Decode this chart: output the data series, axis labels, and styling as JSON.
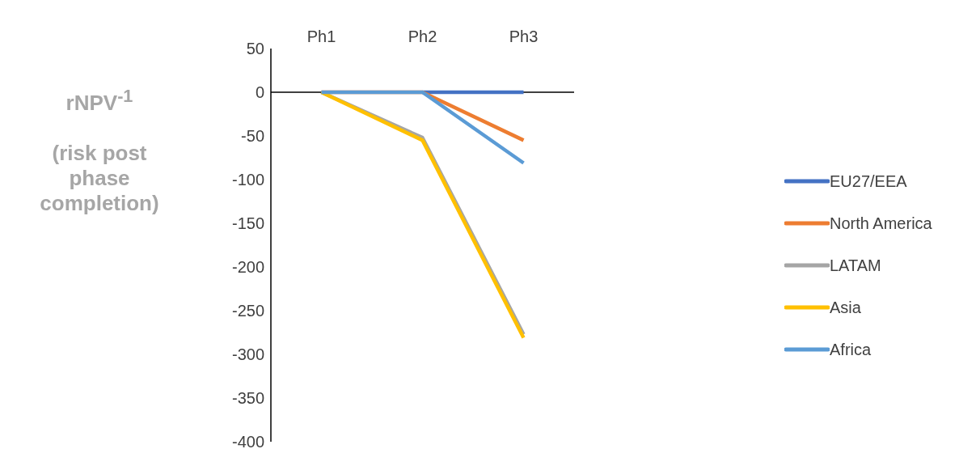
{
  "chart_data": {
    "type": "line",
    "ylabel": "rNPV$^{-1}$\n\n(risk post phase completion)",
    "categories": [
      "Ph1",
      "Ph2",
      "Ph3"
    ],
    "ylim": [
      -400,
      50
    ],
    "yticks": [
      -400,
      -350,
      -300,
      -250,
      -200,
      -150,
      -100,
      -50,
      0,
      50
    ],
    "grid": false,
    "legend": "right",
    "marker": "none",
    "line_style": "solid",
    "ref_lines": [
      {
        "axis": "y",
        "value": 0,
        "color": "#000000"
      }
    ],
    "series": [
      {
        "name": "EU27/EEA",
        "color": "#4472c4",
        "values": [
          null,
          0,
          0
        ]
      },
      {
        "name": "North America",
        "color": "#ed7d31",
        "values": [
          0,
          0,
          -55
        ]
      },
      {
        "name": "LATAM",
        "color": "#a5a5a5",
        "values": [
          0,
          -52,
          -277
        ]
      },
      {
        "name": "Asia",
        "color": "#ffc000",
        "values": [
          0,
          -55,
          -281
        ]
      },
      {
        "name": "Africa",
        "color": "#5b9bd5",
        "values": [
          0,
          0,
          -81
        ]
      }
    ]
  }
}
